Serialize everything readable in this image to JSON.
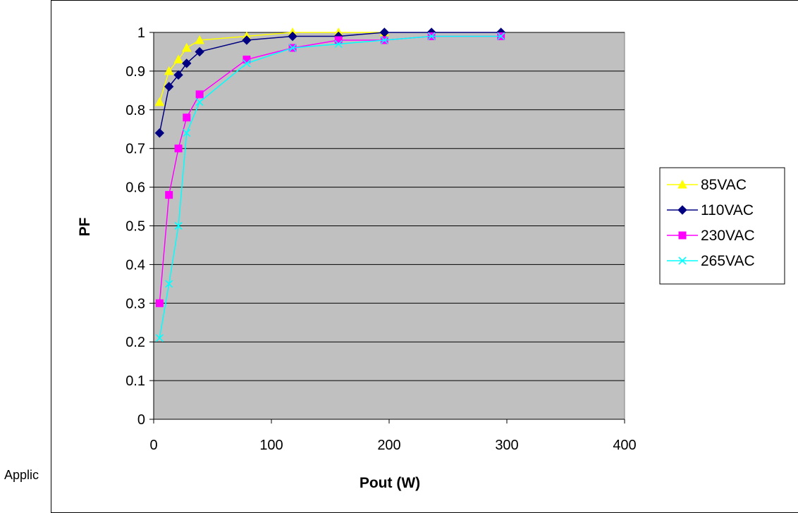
{
  "background_text": "Applic",
  "chart_data": {
    "type": "line",
    "xlabel": "Pout (W)",
    "ylabel": "PF",
    "xlim": [
      0,
      400
    ],
    "ylim": [
      0,
      1
    ],
    "xticks": [
      "0",
      "100",
      "200",
      "300",
      "400"
    ],
    "yticks": [
      "0",
      "0.1",
      "0.2",
      "0.3",
      "0.4",
      "0.5",
      "0.6",
      "0.7",
      "0.8",
      "0.9",
      "1"
    ],
    "grid": "horizontal",
    "plot_background": "#c0c0c0",
    "legend_position": "right",
    "series": [
      {
        "name": "85VAC",
        "color": "#ffff00",
        "marker": "triangle",
        "x": [
          5,
          13,
          21,
          28,
          39,
          79,
          118,
          157,
          196
        ],
        "y": [
          0.82,
          0.9,
          0.93,
          0.96,
          0.98,
          0.99,
          1.0,
          1.0,
          1.0
        ]
      },
      {
        "name": "110VAC",
        "color": "#000080",
        "marker": "diamond",
        "x": [
          5,
          13,
          21,
          28,
          39,
          79,
          118,
          157,
          196,
          236,
          295
        ],
        "y": [
          0.74,
          0.86,
          0.89,
          0.92,
          0.95,
          0.98,
          0.99,
          0.99,
          1.0,
          1.0,
          1.0
        ]
      },
      {
        "name": "230VAC",
        "color": "#ff00ff",
        "marker": "square",
        "x": [
          5,
          13,
          21,
          28,
          39,
          79,
          118,
          157,
          196,
          236,
          295
        ],
        "y": [
          0.3,
          0.58,
          0.7,
          0.78,
          0.84,
          0.93,
          0.96,
          0.98,
          0.98,
          0.99,
          0.99
        ]
      },
      {
        "name": "265VAC",
        "color": "#00ffff",
        "marker": "x",
        "x": [
          5,
          13,
          21,
          28,
          39,
          79,
          118,
          157,
          196,
          236,
          295
        ],
        "y": [
          0.21,
          0.35,
          0.5,
          0.74,
          0.82,
          0.92,
          0.96,
          0.97,
          0.98,
          0.99,
          0.99
        ]
      }
    ]
  }
}
